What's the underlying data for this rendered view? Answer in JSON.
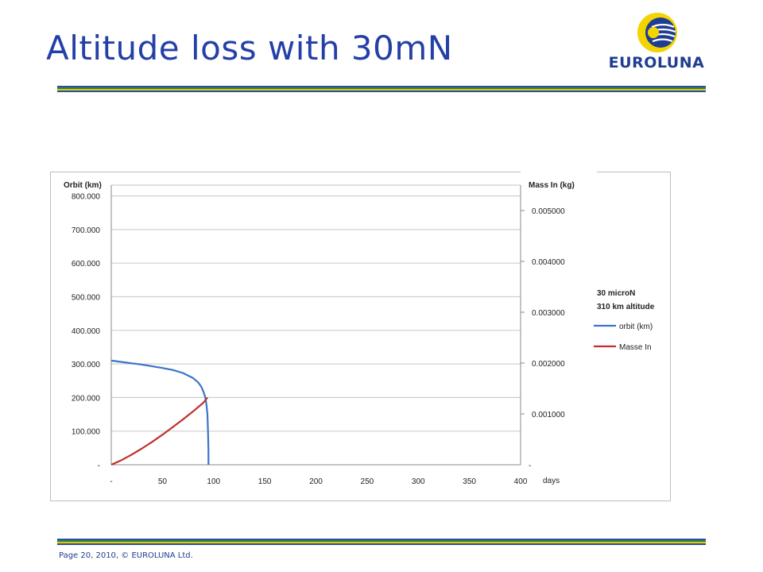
{
  "slide": {
    "title": "Altitude loss with 30mN",
    "footer": "Page 20, 2010, © EUROLUNA Ltd."
  },
  "logo": {
    "text": "EUROLUNA",
    "colors": {
      "yellow": "#f2d400",
      "blue": "#1f3d91"
    }
  },
  "colors": {
    "title": "#2440a8",
    "rule_blue": "#2a4da8",
    "rule_green": "#2b8c3c",
    "rule_yellow": "#e6c800",
    "orbit_line": "#3a74c8",
    "mass_line": "#c0302a",
    "gridline": "#cfcfcf"
  },
  "chart_data": {
    "type": "line",
    "xlabel": "days",
    "ylabel_left": "Orbit (km)",
    "ylabel_right": "Mass In (kg)",
    "xlim": [
      0,
      400
    ],
    "ylim_left": [
      0,
      800
    ],
    "ylim_right": [
      0,
      0.0055
    ],
    "x_ticks": [
      "-",
      "50",
      "100",
      "150",
      "200",
      "250",
      "300",
      "350",
      "400"
    ],
    "y_ticks_left": [
      "-",
      "100.000",
      "200.000",
      "300.000",
      "400.000",
      "500.000",
      "600.000",
      "700.000",
      "800.000"
    ],
    "y_ticks_right": [
      "0.001000",
      "0.002000",
      "0.003000",
      "0.004000",
      "0.005000"
    ],
    "annotations": [
      "30 microN",
      "310 km altitude"
    ],
    "grid": true,
    "legend_position": "right",
    "series": [
      {
        "name": "orbit (km)",
        "axis": "left",
        "color": "#3a74c8",
        "x": [
          0,
          10,
          20,
          30,
          40,
          50,
          60,
          70,
          80,
          85,
          88,
          90,
          92,
          93,
          94,
          94.5,
          95,
          95
        ],
        "y": [
          310,
          306,
          302,
          298,
          293,
          288,
          282,
          273,
          258,
          245,
          232,
          218,
          200,
          180,
          150,
          100,
          40,
          0
        ]
      },
      {
        "name": "Masse In",
        "axis": "right",
        "color": "#c0302a",
        "x": [
          0,
          10,
          20,
          30,
          40,
          50,
          60,
          70,
          80,
          90,
          94
        ],
        "y": [
          0,
          9e-05,
          0.0002,
          0.00032,
          0.00045,
          0.00059,
          0.00074,
          0.00089,
          0.00105,
          0.00122,
          0.00132
        ]
      }
    ]
  }
}
